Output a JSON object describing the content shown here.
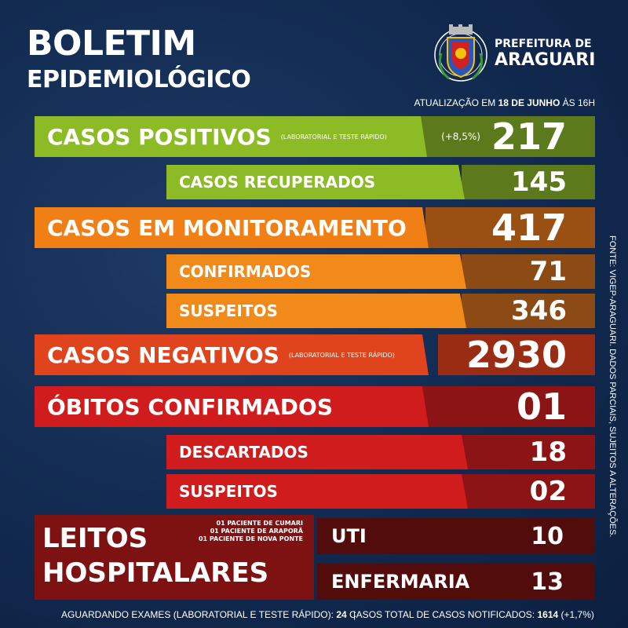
{
  "header": {
    "title_line1": "BOLETIM",
    "title_line2": "EPIDEMIOLÓGICO",
    "prefeitura_line1": "PREFEITURA DE",
    "prefeitura_line2": "ARAGUARI",
    "update_prefix": "ATUALIZAÇÃO EM",
    "update_date": "18 DE JUNHO",
    "update_suffix": "ÀS 16H"
  },
  "rows": {
    "positivos": {
      "label": "CASOS POSITIVOS",
      "sub": "(LABORATORIAL E TESTE RÁPIDO)",
      "pct": "(+8,5%)",
      "value": "217"
    },
    "recuperados": {
      "label": "CASOS RECUPERADOS",
      "value": "145"
    },
    "monitoramento": {
      "label": "CASOS EM MONITORAMENTO",
      "value": "417"
    },
    "confirmados": {
      "label": "CONFIRMADOS",
      "value": "71"
    },
    "suspeitos_mon": {
      "label": "SUSPEITOS",
      "value": "346"
    },
    "negativos": {
      "label": "CASOS NEGATIVOS",
      "sub": "(LABORATORIAL E TESTE RÁPIDO)",
      "value": "2930"
    },
    "obitos": {
      "label": "ÓBITOS CONFIRMADOS",
      "value": "01"
    },
    "descartados": {
      "label": "DESCARTADOS",
      "value": "18"
    },
    "suspeitos_obitos": {
      "label": "SUSPEITOS",
      "value": "02"
    }
  },
  "leitos": {
    "line1": "LEITOS",
    "line2": "HOSPITALARES",
    "notes": [
      "01 PACIENTE DE CUMARI",
      "01 PACIENTE DE ARAPORÃ",
      "01 PACIENTE DE NOVA PONTE"
    ],
    "uti_label": "UTI",
    "uti_value": "10",
    "enfermaria_label": "ENFERMARIA",
    "enfermaria_value": "13"
  },
  "side_note": "FONTE: VIGEP-ARAGUARI. DADOS PARCIAIS, SUJEITOS A ALTERAÇÕES.",
  "footer": {
    "aguardando_label": "AGUARDANDO EXAMES (LABORATORIAL E TESTE RÁPIDO):",
    "aguardando_value": "24",
    "aguardando_unit": "CASOS",
    "separator": "|",
    "total_label": "TOTAL DE CASOS NOTIFICADOS:",
    "total_value": "1614",
    "total_pct": "(+1,7%)"
  },
  "colors": {
    "background": "#122a50",
    "green": "#8cbb26",
    "orange": "#f07f16",
    "red_orange": "#e0441c",
    "red": "#d01c1c",
    "dark_red": "#7e1212"
  },
  "icons": {
    "logo": "araguari-coat-of-arms"
  }
}
